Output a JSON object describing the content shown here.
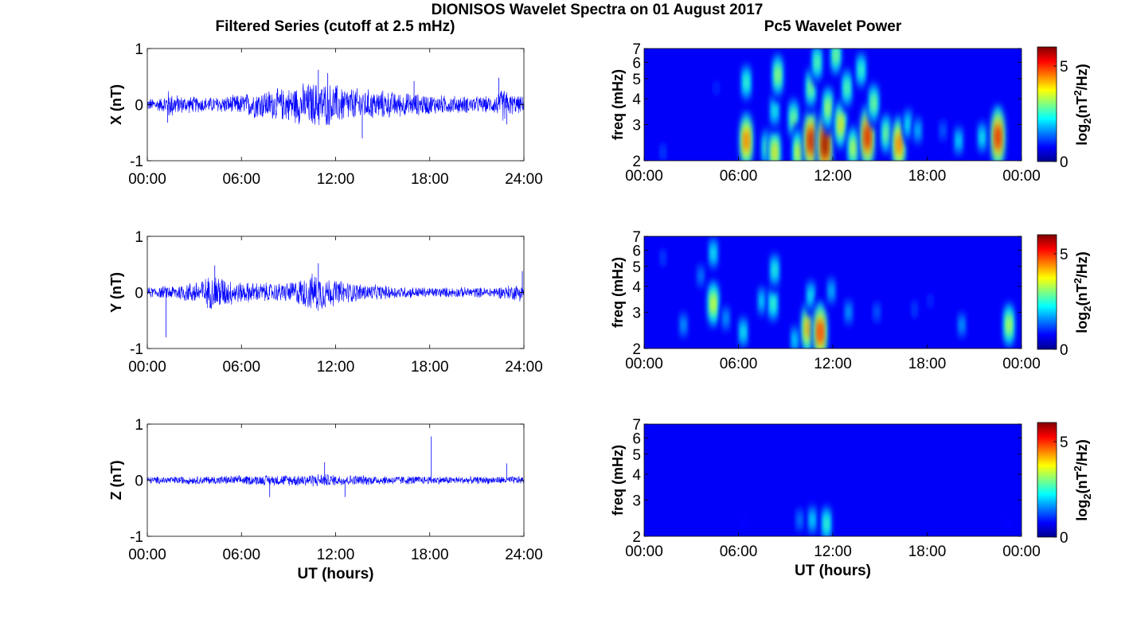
{
  "figure": {
    "title": "DIONISOS Wavelet Spectra on 01 August 2017",
    "left_title": "Filtered Series (cutoff at 2.5 mHz)",
    "right_title": "Pc5 Wavelet Power",
    "time_xlabel": "UT (hours)",
    "spectrum_ylabel": "freq (mHz)",
    "colorbar_label_prefix": "log",
    "colorbar_label_sub": "2",
    "colorbar_label_body": "(nT",
    "colorbar_label_sup": "2",
    "colorbar_label_suffix": "/Hz)",
    "colormap": "jet"
  },
  "chart_data": [
    {
      "type": "line",
      "panel": "X series",
      "ylabel": "X (nT)",
      "ylim": [
        -1,
        1
      ],
      "yticks": [
        "1",
        "0",
        "-1"
      ],
      "xlim": [
        "00:00",
        "24:00"
      ],
      "xticks": [
        "00:00",
        "06:00",
        "12:00",
        "18:00",
        "24:00"
      ],
      "line_color": "#0000ff",
      "envelope_hours": [
        0,
        1,
        1.3,
        2,
        3,
        4,
        5,
        6,
        7,
        8,
        9,
        10,
        11,
        12,
        13,
        14,
        15,
        16,
        17,
        18,
        19,
        20,
        21,
        22,
        22.8,
        23,
        24
      ],
      "envelope_nT": [
        0.12,
        0.14,
        0.3,
        0.18,
        0.16,
        0.15,
        0.17,
        0.2,
        0.28,
        0.3,
        0.33,
        0.42,
        0.45,
        0.4,
        0.33,
        0.3,
        0.28,
        0.24,
        0.22,
        0.2,
        0.18,
        0.17,
        0.16,
        0.16,
        0.35,
        0.22,
        0.15
      ],
      "peak_hours": [
        1.3,
        10.9,
        11.5,
        13.7,
        17.0,
        22.4,
        22.9
      ],
      "peak_nT": [
        -0.32,
        0.62,
        0.56,
        -0.6,
        0.42,
        0.48,
        -0.35
      ]
    },
    {
      "type": "line",
      "panel": "Y series",
      "ylabel": "Y (nT)",
      "ylim": [
        -1,
        1
      ],
      "yticks": [
        "1",
        "0",
        "-1"
      ],
      "xlim": [
        "00:00",
        "24:00"
      ],
      "xticks": [
        "00:00",
        "06:00",
        "12:00",
        "18:00",
        "24:00"
      ],
      "line_color": "#0000ff",
      "envelope_hours": [
        0,
        1,
        2,
        3,
        4,
        4.5,
        5,
        6,
        7,
        8,
        9,
        10,
        10.8,
        11.5,
        12,
        13,
        14,
        15,
        16,
        17,
        18,
        19,
        20,
        21,
        22,
        23,
        24
      ],
      "envelope_nT": [
        0.1,
        0.12,
        0.16,
        0.22,
        0.32,
        0.38,
        0.28,
        0.2,
        0.2,
        0.18,
        0.2,
        0.3,
        0.4,
        0.3,
        0.25,
        0.2,
        0.16,
        0.14,
        0.12,
        0.11,
        0.1,
        0.1,
        0.1,
        0.1,
        0.1,
        0.14,
        0.18
      ],
      "peak_hours": [
        1.2,
        4.3,
        10.9,
        23.9
      ],
      "peak_nT": [
        -0.8,
        0.48,
        0.52,
        0.38
      ]
    },
    {
      "type": "line",
      "panel": "Z series",
      "ylabel": "Z (nT)",
      "ylim": [
        -1,
        1
      ],
      "yticks": [
        "1",
        "0",
        "-1"
      ],
      "xlim": [
        "00:00",
        "24:00"
      ],
      "xticks": [
        "00:00",
        "06:00",
        "12:00",
        "18:00",
        "24:00"
      ],
      "xlabel": "UT (hours)",
      "line_color": "#0000ff",
      "envelope_hours": [
        0,
        3,
        6,
        9,
        11,
        12,
        15,
        18,
        21,
        24
      ],
      "envelope_nT": [
        0.07,
        0.08,
        0.09,
        0.11,
        0.13,
        0.11,
        0.09,
        0.08,
        0.07,
        0.08
      ],
      "peak_hours": [
        7.8,
        11.3,
        12.6,
        18.1,
        22.9
      ],
      "peak_nT": [
        -0.3,
        0.32,
        -0.3,
        0.78,
        0.3
      ]
    },
    {
      "type": "heatmap",
      "panel": "X wavelet power",
      "ylabel": "freq (mHz)",
      "yscale": "log",
      "ylim": [
        2,
        7
      ],
      "yticks": [
        "2",
        "3",
        "4",
        "5",
        "6",
        "7"
      ],
      "xlim": [
        "00:00",
        "24:00"
      ],
      "xticks": [
        "00:00",
        "06:00",
        "12:00",
        "18:00",
        "00:00"
      ],
      "colorbar": {
        "range": [
          0,
          6
        ],
        "ticks": [
          "0",
          "5"
        ]
      },
      "blobs": [
        {
          "hour": 1.2,
          "freq_mHz": 2.2,
          "power": 1.2
        },
        {
          "hour": 4.6,
          "freq_mHz": 4.5,
          "power": 1.0
        },
        {
          "hour": 6.5,
          "freq_mHz": 2.5,
          "power": 4.8
        },
        {
          "hour": 6.5,
          "freq_mHz": 4.8,
          "power": 2.8
        },
        {
          "hour": 7.8,
          "freq_mHz": 2.3,
          "power": 3.0
        },
        {
          "hour": 8.3,
          "freq_mHz": 2.2,
          "power": 4.0
        },
        {
          "hour": 8.3,
          "freq_mHz": 3.5,
          "power": 2.5
        },
        {
          "hour": 8.5,
          "freq_mHz": 5.2,
          "power": 3.4
        },
        {
          "hour": 9.5,
          "freq_mHz": 3.2,
          "power": 3.2
        },
        {
          "hour": 9.8,
          "freq_mHz": 2.2,
          "power": 3.8
        },
        {
          "hour": 10.6,
          "freq_mHz": 2.5,
          "power": 5.6
        },
        {
          "hour": 10.6,
          "freq_mHz": 4.5,
          "power": 3.2
        },
        {
          "hour": 11.0,
          "freq_mHz": 6.0,
          "power": 3.0
        },
        {
          "hour": 11.5,
          "freq_mHz": 2.4,
          "power": 6.0
        },
        {
          "hour": 11.7,
          "freq_mHz": 3.6,
          "power": 3.5
        },
        {
          "hour": 12.2,
          "freq_mHz": 6.5,
          "power": 3.2
        },
        {
          "hour": 12.5,
          "freq_mHz": 3.0,
          "power": 4.0
        },
        {
          "hour": 12.9,
          "freq_mHz": 4.5,
          "power": 3.0
        },
        {
          "hour": 13.3,
          "freq_mHz": 2.3,
          "power": 3.6
        },
        {
          "hour": 13.8,
          "freq_mHz": 5.5,
          "power": 2.8
        },
        {
          "hour": 14.2,
          "freq_mHz": 2.6,
          "power": 5.5
        },
        {
          "hour": 14.6,
          "freq_mHz": 3.8,
          "power": 3.2
        },
        {
          "hour": 15.4,
          "freq_mHz": 2.7,
          "power": 3.2
        },
        {
          "hour": 16.2,
          "freq_mHz": 2.4,
          "power": 4.8
        },
        {
          "hour": 16.8,
          "freq_mHz": 3.0,
          "power": 2.4
        },
        {
          "hour": 17.4,
          "freq_mHz": 2.8,
          "power": 2.0
        },
        {
          "hour": 19.0,
          "freq_mHz": 2.8,
          "power": 1.4
        },
        {
          "hour": 20.0,
          "freq_mHz": 2.5,
          "power": 2.2
        },
        {
          "hour": 21.5,
          "freq_mHz": 2.6,
          "power": 2.4
        },
        {
          "hour": 22.5,
          "freq_mHz": 2.6,
          "power": 5.4
        }
      ]
    },
    {
      "type": "heatmap",
      "panel": "Y wavelet power",
      "ylabel": "freq (mHz)",
      "yscale": "log",
      "ylim": [
        2,
        7
      ],
      "yticks": [
        "2",
        "3",
        "4",
        "5",
        "6",
        "7"
      ],
      "xlim": [
        "00:00",
        "24:00"
      ],
      "xticks": [
        "00:00",
        "06:00",
        "12:00",
        "18:00",
        "00:00"
      ],
      "colorbar": {
        "range": [
          0,
          6
        ],
        "ticks": [
          "0",
          "5"
        ]
      },
      "blobs": [
        {
          "hour": 1.2,
          "freq_mHz": 5.5,
          "power": 1.2
        },
        {
          "hour": 2.5,
          "freq_mHz": 2.6,
          "power": 1.8
        },
        {
          "hour": 3.6,
          "freq_mHz": 4.5,
          "power": 1.6
        },
        {
          "hour": 4.4,
          "freq_mHz": 3.3,
          "power": 3.8
        },
        {
          "hour": 4.4,
          "freq_mHz": 5.8,
          "power": 2.4
        },
        {
          "hour": 5.2,
          "freq_mHz": 2.8,
          "power": 1.8
        },
        {
          "hour": 6.3,
          "freq_mHz": 2.4,
          "power": 2.4
        },
        {
          "hour": 7.5,
          "freq_mHz": 3.4,
          "power": 2.2
        },
        {
          "hour": 8.2,
          "freq_mHz": 3.3,
          "power": 2.8
        },
        {
          "hour": 8.3,
          "freq_mHz": 4.8,
          "power": 2.6
        },
        {
          "hour": 9.6,
          "freq_mHz": 2.2,
          "power": 2.2
        },
        {
          "hour": 10.4,
          "freq_mHz": 2.5,
          "power": 4.4
        },
        {
          "hour": 10.6,
          "freq_mHz": 3.6,
          "power": 2.4
        },
        {
          "hour": 11.2,
          "freq_mHz": 2.4,
          "power": 5.2
        },
        {
          "hour": 11.9,
          "freq_mHz": 3.8,
          "power": 2.0
        },
        {
          "hour": 13.0,
          "freq_mHz": 3.0,
          "power": 1.8
        },
        {
          "hour": 14.8,
          "freq_mHz": 3.0,
          "power": 1.4
        },
        {
          "hour": 17.2,
          "freq_mHz": 3.1,
          "power": 1.2
        },
        {
          "hour": 18.2,
          "freq_mHz": 3.4,
          "power": 1.0
        },
        {
          "hour": 20.2,
          "freq_mHz": 2.6,
          "power": 1.8
        },
        {
          "hour": 23.2,
          "freq_mHz": 2.6,
          "power": 3.6
        }
      ]
    },
    {
      "type": "heatmap",
      "panel": "Z wavelet power",
      "ylabel": "freq (mHz)",
      "xlabel": "UT (hours)",
      "yscale": "log",
      "ylim": [
        2,
        7
      ],
      "yticks": [
        "2",
        "3",
        "4",
        "5",
        "6",
        "7"
      ],
      "xlim": [
        "00:00",
        "24:00"
      ],
      "xticks": [
        "00:00",
        "06:00",
        "12:00",
        "18:00",
        "00:00"
      ],
      "colorbar": {
        "range": [
          0,
          6
        ],
        "ticks": [
          "0",
          "5"
        ]
      },
      "blobs": [
        {
          "hour": 4.4,
          "freq_mHz": 3.2,
          "power": 0.5
        },
        {
          "hour": 6.4,
          "freq_mHz": 2.3,
          "power": 0.8
        },
        {
          "hour": 8.4,
          "freq_mHz": 3.3,
          "power": 0.6
        },
        {
          "hour": 9.9,
          "freq_mHz": 2.4,
          "power": 1.6
        },
        {
          "hour": 10.7,
          "freq_mHz": 2.4,
          "power": 2.2
        },
        {
          "hour": 11.6,
          "freq_mHz": 2.3,
          "power": 2.8
        },
        {
          "hour": 23.1,
          "freq_mHz": 2.3,
          "power": 0.8
        }
      ]
    }
  ]
}
